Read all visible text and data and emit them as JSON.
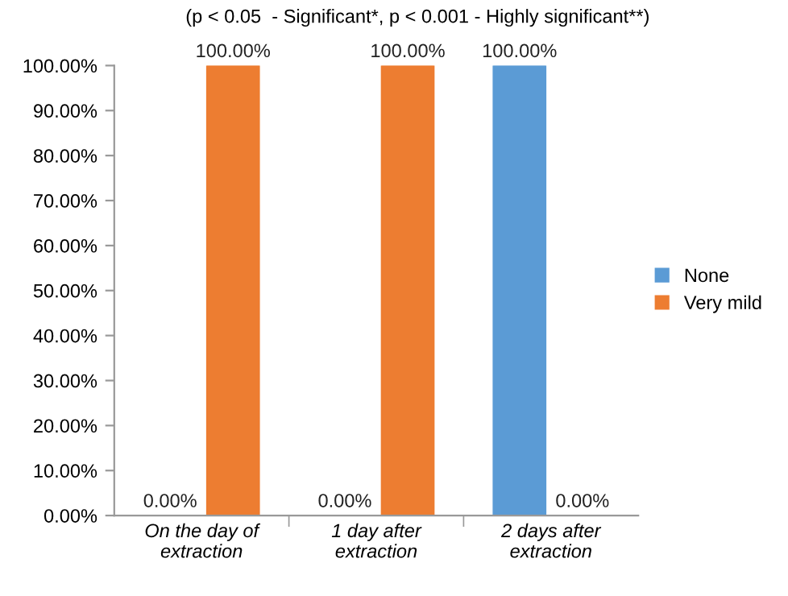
{
  "chart_data": {
    "type": "bar",
    "title": "(p < 0.05  - Significant*, p < 0.001 - Highly significant**)",
    "categories": [
      "On the day of\nextraction",
      "1 day after\nextraction",
      "2 days after\nextraction"
    ],
    "series": [
      {
        "name": "None",
        "color": "#5b9bd5",
        "values": [
          0,
          0,
          100
        ],
        "value_labels": [
          "0.00%",
          "0.00%",
          "100.00%"
        ]
      },
      {
        "name": "Very mild",
        "color": "#ed7d31",
        "values": [
          100,
          100,
          0
        ],
        "value_labels": [
          "100.00%",
          "100.00%",
          "0.00%"
        ]
      }
    ],
    "ylim": [
      0,
      100
    ],
    "yticks": [
      {
        "value": 0,
        "label": "0.00%"
      },
      {
        "value": 10,
        "label": "10.00%"
      },
      {
        "value": 20,
        "label": "20.00%"
      },
      {
        "value": 30,
        "label": "30.00%"
      },
      {
        "value": 40,
        "label": "40.00%"
      },
      {
        "value": 50,
        "label": "50.00%"
      },
      {
        "value": 60,
        "label": "60.00%"
      },
      {
        "value": 70,
        "label": "70.00%"
      },
      {
        "value": 80,
        "label": "80.00%"
      },
      {
        "value": 90,
        "label": "90.00%"
      },
      {
        "value": 100,
        "label": "100.00%"
      }
    ],
    "grid": false,
    "legend": "right"
  }
}
